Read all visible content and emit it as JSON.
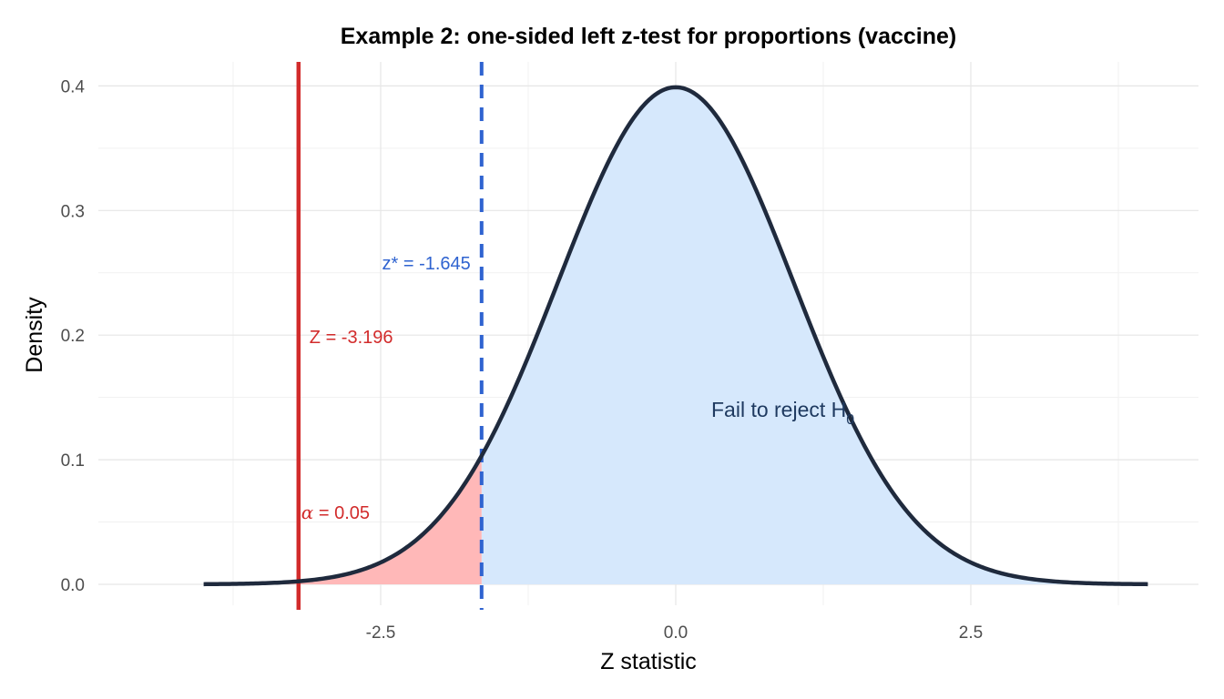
{
  "chart_data": {
    "type": "area",
    "title": "Example 2: one-sided left z-test for proportions (vaccine)",
    "xlabel": "Z statistic",
    "ylabel": "Density",
    "xlim": [
      -4,
      4
    ],
    "ylim": [
      0,
      0.4
    ],
    "x_ticks": [
      -2.5,
      0.0,
      2.5
    ],
    "x_tick_labels": [
      "-2.5",
      "0.0",
      "2.5"
    ],
    "y_ticks": [
      0.0,
      0.1,
      0.2,
      0.3,
      0.4
    ],
    "y_tick_labels": [
      "0.0",
      "0.1",
      "0.2",
      "0.3",
      "0.4"
    ],
    "grid": true,
    "curve": {
      "distribution": "standard normal",
      "mean": 0,
      "sd": 1,
      "color": "#1f2a3d"
    },
    "critical_value": {
      "z": -1.645,
      "label": "z* = -1.645",
      "color": "#2f63d0",
      "style": "dashed"
    },
    "test_statistic": {
      "z": -3.196,
      "label": "Z = -3.196",
      "color": "#d22b2b"
    },
    "rejection_region": {
      "from": -4,
      "to": -1.645,
      "color": "#ffb8b8",
      "label_symbol": "α",
      "label_rest": " = 0.05",
      "label_color": "#d22b2b"
    },
    "acceptance_region": {
      "from": -1.645,
      "to": 4,
      "color": "#d6e8fc",
      "label_main": "Fail to reject H",
      "label_sub": "0",
      "label_color": "#1f3a60"
    }
  }
}
